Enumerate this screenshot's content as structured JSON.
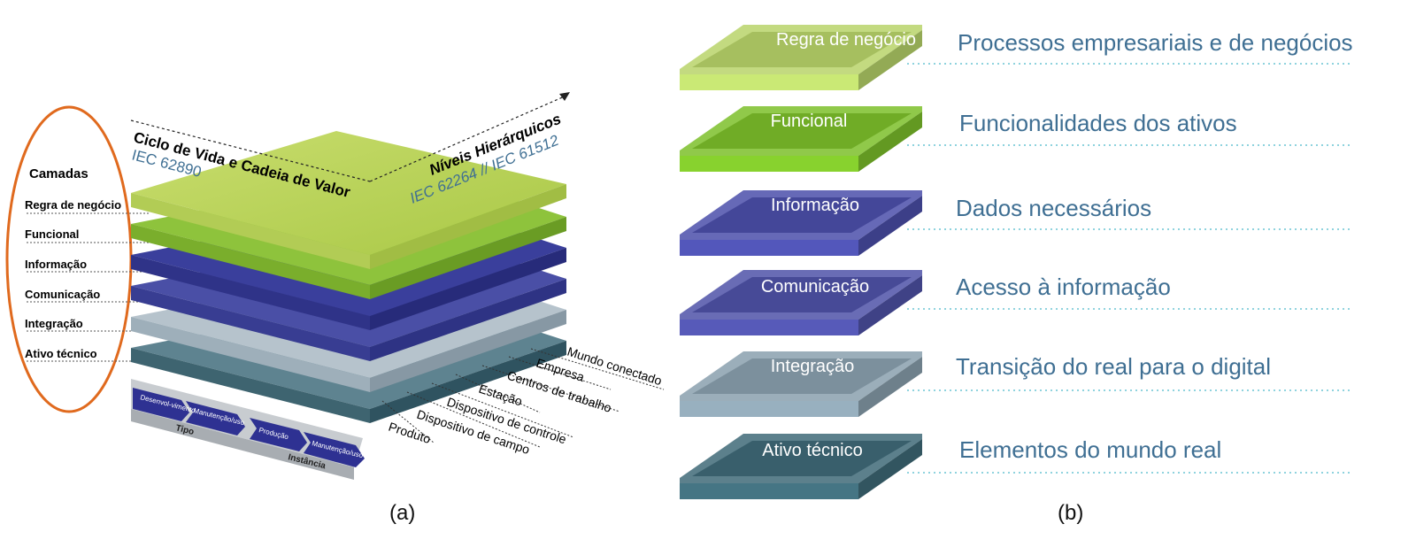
{
  "panel_a": {
    "caption": "(a)",
    "camadas_title": "Camadas",
    "camadas": [
      "Regra de negócio",
      "Funcional",
      "Informação",
      "Comunicação",
      "Integração",
      "Ativo técnico"
    ],
    "axis_lifecycle": {
      "title": "Ciclo de Vida e Cadeia de Valor",
      "standard": "IEC 62890"
    },
    "axis_hierarchy": {
      "title": "Níveis Hierárquicos",
      "standard": "IEC 62264 // IEC 61512"
    },
    "hierarchy_levels": [
      "Mundo conectado",
      "Empresa",
      "Centros de trabalho",
      "Estação",
      "Dispositivo de controle",
      "Dispositivo de campo",
      "Produto"
    ],
    "lifecycle": {
      "tipo": {
        "label": "Tipo",
        "steps": [
          "Desenvol-vimento",
          "Manutenção/uso"
        ]
      },
      "instancia": {
        "label": "Instância",
        "steps": [
          "Produção",
          "Manutenção/uso"
        ]
      }
    }
  },
  "panel_b": {
    "caption": "(b)",
    "layers": [
      {
        "name": "Regra de negócio",
        "description": "Processos empresariais e de negócios",
        "color": "#b8d46a"
      },
      {
        "name": "Funcional",
        "description": "Funcionalidades dos ativos",
        "color": "#7cbf2a"
      },
      {
        "name": "Informação",
        "description": "Dados necessários",
        "color": "#4b4faa"
      },
      {
        "name": "Comunicação",
        "description": "Acesso à informação",
        "color": "#4f52a8"
      },
      {
        "name": "Integração",
        "description": "Transição do real para o digital",
        "color": "#8aa0ae"
      },
      {
        "name": "Ativo técnico",
        "description": "Elementos do mundo real",
        "color": "#3f6a78"
      }
    ]
  },
  "colors": {
    "ellipse": "#e06a1e",
    "desc_text": "#3f6f93",
    "lifecycle_arrow": "#2e3192"
  }
}
